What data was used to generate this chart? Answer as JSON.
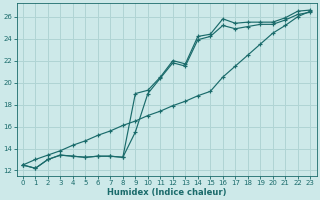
{
  "xlabel": "Humidex (Indice chaleur)",
  "ylabel": "",
  "background_color": "#cde9e9",
  "grid_color": "#b0d4d4",
  "line_color": "#1a6b6b",
  "xlim": [
    -0.5,
    23.5
  ],
  "ylim": [
    11.5,
    27.2
  ],
  "xticks": [
    0,
    1,
    2,
    3,
    4,
    5,
    6,
    7,
    8,
    9,
    10,
    11,
    12,
    13,
    14,
    15,
    16,
    17,
    18,
    19,
    20,
    21,
    22,
    23
  ],
  "yticks": [
    12,
    14,
    16,
    18,
    20,
    22,
    24,
    26
  ],
  "line_straight_x": [
    0,
    1,
    2,
    3,
    4,
    5,
    6,
    7,
    8,
    9,
    10,
    11,
    12,
    13,
    14,
    15,
    16,
    17,
    18,
    19,
    20,
    21,
    22,
    23
  ],
  "line_straight_y": [
    12.5,
    13.0,
    13.4,
    13.8,
    14.3,
    14.7,
    15.2,
    15.6,
    16.1,
    16.5,
    17.0,
    17.4,
    17.9,
    18.3,
    18.8,
    19.2,
    20.5,
    21.5,
    22.5,
    23.5,
    24.5,
    25.2,
    26.0,
    26.5
  ],
  "line_top_x": [
    0,
    1,
    2,
    3,
    4,
    5,
    6,
    7,
    8,
    9,
    10,
    11,
    12,
    13,
    14,
    15,
    16,
    17,
    18,
    19,
    20,
    21,
    22,
    23
  ],
  "line_top_y": [
    12.5,
    12.2,
    13.0,
    13.4,
    13.3,
    13.2,
    13.3,
    13.3,
    13.2,
    19.0,
    19.3,
    20.5,
    22.0,
    21.7,
    24.2,
    24.4,
    25.8,
    25.4,
    25.5,
    25.5,
    25.5,
    25.9,
    26.5,
    26.6
  ],
  "line_bot_x": [
    0,
    1,
    2,
    3,
    4,
    5,
    6,
    7,
    8,
    9,
    10,
    11,
    12,
    13,
    14,
    15,
    16,
    17,
    18,
    19,
    20,
    21,
    22,
    23
  ],
  "line_bot_y": [
    12.5,
    12.2,
    13.0,
    13.4,
    13.3,
    13.2,
    13.3,
    13.3,
    13.2,
    15.5,
    19.0,
    20.4,
    21.8,
    21.5,
    23.9,
    24.2,
    25.2,
    24.9,
    25.1,
    25.3,
    25.3,
    25.7,
    26.2,
    26.4
  ]
}
